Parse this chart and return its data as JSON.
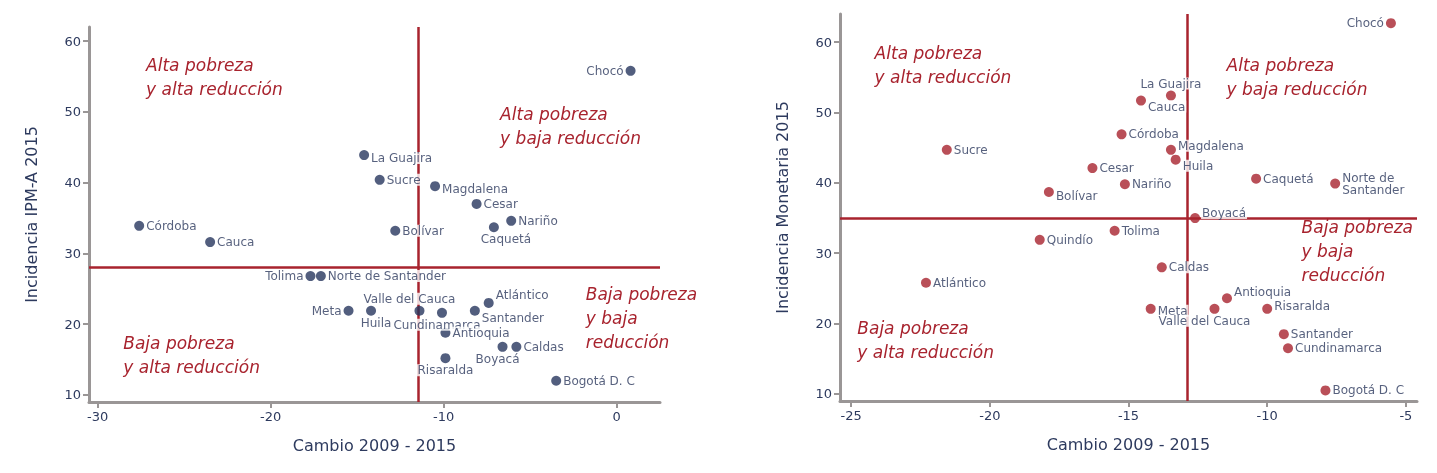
{
  "chart_data": [
    {
      "type": "scatter",
      "xlabel": "Cambio 2009 - 2015",
      "ylabel": "Incidencia IPM-A 2015",
      "color": "#27365e",
      "marker": "circle",
      "grid": false,
      "xlim": [
        -30.5,
        2.5
      ],
      "ylim": [
        9,
        62
      ],
      "xticks": [
        -30,
        -20,
        -10,
        0
      ],
      "yticks": [
        10,
        20,
        30,
        40,
        50,
        60
      ],
      "x": [
        0.8,
        -14.6,
        -13.7,
        -10.5,
        -8.1,
        -6.1,
        -7.1,
        -12.8,
        -27.6,
        -23.5,
        -17.7,
        -17.1,
        -7.4,
        -15.5,
        -14.2,
        -11.4,
        -10.1,
        -8.2,
        -9.9,
        -6.6,
        -5.8,
        -9.9,
        -3.5
      ],
      "values": [
        55.8,
        43.9,
        40.4,
        39.5,
        37.0,
        34.6,
        33.7,
        33.2,
        33.9,
        31.6,
        26.8,
        26.8,
        23.0,
        21.9,
        21.9,
        21.9,
        21.6,
        21.9,
        18.8,
        16.8,
        16.8,
        15.2,
        12.0
      ],
      "ref_lines": [
        {
          "axis": "x",
          "value": -11.5,
          "color": "#a8232e"
        },
        {
          "axis": "y",
          "value": 28,
          "color": "#a8232e"
        }
      ],
      "annotations": [
        {
          "text": "Chocó",
          "x": 0.8,
          "y": 55.8
        },
        {
          "text": "La Guajira",
          "x": -14.6,
          "y": 43.9
        },
        {
          "text": "Sucre",
          "x": -13.7,
          "y": 40.4
        },
        {
          "text": "Magdalena",
          "x": -10.5,
          "y": 39.5
        },
        {
          "text": "Cesar",
          "x": -8.1,
          "y": 37.0
        },
        {
          "text": "Nariño",
          "x": -6.1,
          "y": 34.6
        },
        {
          "text": "Caquetá",
          "x": -7.1,
          "y": 33.7
        },
        {
          "text": "Bolívar",
          "x": -12.8,
          "y": 33.2
        },
        {
          "text": "Córdoba",
          "x": -27.6,
          "y": 33.9
        },
        {
          "text": "Cauca",
          "x": -23.5,
          "y": 31.6
        },
        {
          "text": "Tolima",
          "x": -17.7,
          "y": 26.8
        },
        {
          "text": "Norte de Santander",
          "x": -17.1,
          "y": 26.8
        },
        {
          "text": "Atlántico",
          "x": -7.4,
          "y": 23.0
        },
        {
          "text": "Meta",
          "x": -15.5,
          "y": 21.9
        },
        {
          "text": "Huila",
          "x": -14.2,
          "y": 21.9
        },
        {
          "text": "Valle del Cauca",
          "x": -11.4,
          "y": 21.9
        },
        {
          "text": "Cundinamarca",
          "x": -10.1,
          "y": 21.6
        },
        {
          "text": "Santander",
          "x": -8.2,
          "y": 21.9
        },
        {
          "text": "Antioquia",
          "x": -9.9,
          "y": 18.8
        },
        {
          "text": "Boyacá",
          "x": -6.6,
          "y": 16.8
        },
        {
          "text": "Caldas",
          "x": -5.8,
          "y": 16.8
        },
        {
          "text": "Risaralda",
          "x": -9.9,
          "y": 15.2
        },
        {
          "text": "Bogotá D. C",
          "x": -3.5,
          "y": 12.0
        },
        "Alta pobreza\ny alta reducción",
        "Alta pobreza\ny baja reducción",
        "Baja pobreza\ny baja\nreducción",
        "Baja pobreza\ny alta reducción"
      ]
    },
    {
      "type": "scatter",
      "xlabel": "Cambio 2009 - 2015",
      "ylabel": "Incidencia Monetaria 2015",
      "color": "#a8232e",
      "marker": "circle",
      "grid": false,
      "xlim": [
        -25.4,
        -4.6
      ],
      "ylim": [
        9,
        64
      ],
      "xticks": [
        -25,
        -20,
        -15,
        -10,
        -5
      ],
      "yticks": [
        10,
        20,
        30,
        40,
        50,
        60
      ],
      "x": [
        -5.54,
        -13.47,
        -14.55,
        -15.25,
        -21.55,
        -13.47,
        -13.3,
        -16.3,
        -15.13,
        -17.87,
        -10.4,
        -7.55,
        -12.6,
        -15.5,
        -18.2,
        -13.8,
        -22.3,
        -11.45,
        -14.2,
        -11.9,
        -10.0,
        -9.4,
        -9.25,
        -7.9
      ],
      "values": [
        62.7,
        52.4,
        51.7,
        46.9,
        44.7,
        44.7,
        43.3,
        42.1,
        39.8,
        38.7,
        40.6,
        39.9,
        35.0,
        33.2,
        31.9,
        28.0,
        25.8,
        23.6,
        22.1,
        22.1,
        22.1,
        18.5,
        16.5,
        10.5
      ],
      "ref_lines": [
        {
          "axis": "x",
          "value": -12.9,
          "color": "#a8232e"
        },
        {
          "axis": "y",
          "value": 35,
          "color": "#a8232e"
        }
      ],
      "annotations": [
        {
          "text": "Chocó",
          "x": -5.54,
          "y": 62.7
        },
        {
          "text": "La Guajira",
          "x": -13.47,
          "y": 52.4
        },
        {
          "text": "Cauca",
          "x": -14.55,
          "y": 51.7
        },
        {
          "text": "Córdoba",
          "x": -15.25,
          "y": 46.9
        },
        {
          "text": "Sucre",
          "x": -21.55,
          "y": 44.7
        },
        {
          "text": "Magdalena",
          "x": -13.47,
          "y": 44.7
        },
        {
          "text": "Huila",
          "x": -13.3,
          "y": 43.3
        },
        {
          "text": "Cesar",
          "x": -16.3,
          "y": 42.1
        },
        {
          "text": "Nariño",
          "x": -15.13,
          "y": 39.8
        },
        {
          "text": "Bolívar",
          "x": -17.87,
          "y": 38.7
        },
        {
          "text": "Caquetá",
          "x": -10.4,
          "y": 40.6
        },
        {
          "text": "Norte de Santander",
          "x": -7.55,
          "y": 39.9
        },
        {
          "text": "Boyacá",
          "x": -12.6,
          "y": 35.0
        },
        {
          "text": "Tolima",
          "x": -15.5,
          "y": 33.2
        },
        {
          "text": "Quindío",
          "x": -18.2,
          "y": 31.9
        },
        {
          "text": "Caldas",
          "x": -13.8,
          "y": 28.0
        },
        {
          "text": "Atlántico",
          "x": -22.3,
          "y": 25.8
        },
        {
          "text": "Antioquia",
          "x": -11.45,
          "y": 23.6
        },
        {
          "text": "Meta",
          "x": -14.2,
          "y": 22.1
        },
        {
          "text": "Valle del Cauca",
          "x": -11.9,
          "y": 22.1
        },
        {
          "text": "Risaralda",
          "x": -10.0,
          "y": 22.1
        },
        {
          "text": "Santander",
          "x": -9.4,
          "y": 18.5
        },
        {
          "text": "Cundinamarca",
          "x": -9.25,
          "y": 16.5
        },
        {
          "text": "Bogotá D. C",
          "x": -7.9,
          "y": 10.5
        },
        "Alta pobreza\ny alta reducción",
        "Alta pobreza\ny baja reducción",
        "Baja pobreza\ny baja\nreducción",
        "Baja pobreza\ny alta reducción"
      ]
    }
  ]
}
